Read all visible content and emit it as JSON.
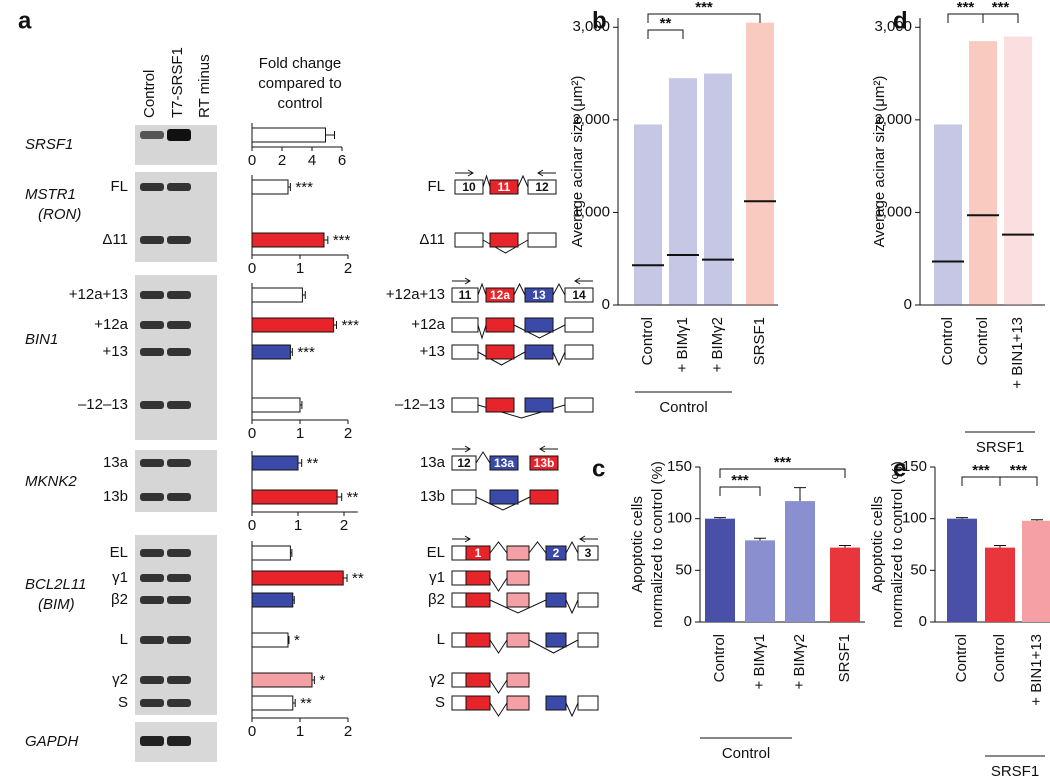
{
  "panel_labels": [
    "a",
    "b",
    "c",
    "d",
    "e"
  ],
  "gel": {
    "lanes": [
      "Control",
      "T7-SRSF1",
      "RT minus"
    ],
    "loading_control": "GAPDH"
  },
  "fold_change_header": [
    "Fold change",
    "compared to",
    "control"
  ],
  "chart_data": [
    {
      "type": "hbar",
      "title": "SRSF1",
      "categories": [
        null
      ],
      "values": [
        4.9
      ],
      "errors": [
        0.6
      ],
      "colors": [
        "#ffffff"
      ],
      "annotations": [
        null
      ],
      "xlim": [
        0,
        6
      ],
      "xticks": [
        0,
        2,
        4,
        6
      ]
    },
    {
      "type": "hbar",
      "title": "MSTR1",
      "subtitle": "(RON)",
      "categories": [
        "FL",
        "Δ11"
      ],
      "values": [
        0.75,
        1.5
      ],
      "errors": [
        0.05,
        0.08
      ],
      "colors": [
        "#ffffff",
        "#e8242b"
      ],
      "annotations": [
        "***",
        "***"
      ],
      "xlim": [
        0,
        2
      ],
      "xticks": [
        0,
        1,
        2
      ],
      "exon_labels": [
        "10",
        "11",
        "12"
      ]
    },
    {
      "type": "hbar",
      "title": "BIN1",
      "categories": [
        "+12a+13",
        "+12a",
        "+13",
        "–12–13"
      ],
      "values": [
        1.05,
        1.7,
        0.8,
        1.0
      ],
      "errors": [
        0.06,
        0.06,
        0.04,
        0.04
      ],
      "colors": [
        "#ffffff",
        "#e8242b",
        "#3b4aa8",
        "#ffffff"
      ],
      "annotations": [
        null,
        "***",
        "***",
        null
      ],
      "xlim": [
        0,
        2
      ],
      "xticks": [
        0,
        1,
        2
      ],
      "exon_labels": [
        "11",
        "12a",
        "13",
        "14"
      ]
    },
    {
      "type": "hbar",
      "title": "MKNK2",
      "categories": [
        "13a",
        "13b"
      ],
      "values": [
        1.0,
        1.85
      ],
      "errors": [
        0.08,
        0.1
      ],
      "colors": [
        "#3b4aa8",
        "#e8242b"
      ],
      "annotations": [
        "**",
        "**"
      ],
      "xlim": [
        0,
        2.3
      ],
      "xticks": [
        0,
        1,
        2
      ],
      "exon_labels": [
        "12",
        "13a",
        "13b"
      ]
    },
    {
      "type": "hbar",
      "title": "BCL2L11",
      "subtitle": "(BIM)",
      "categories": [
        "EL",
        "γ1",
        "β2",
        "L",
        "γ2",
        "S"
      ],
      "values": [
        0.8,
        1.9,
        0.85,
        0.75,
        1.25,
        0.85
      ],
      "errors": [
        0.03,
        0.08,
        0.03,
        0.02,
        0.05,
        0.05
      ],
      "colors": [
        "#ffffff",
        "#e8242b",
        "#3b4aa8",
        "#ffffff",
        "#f4a0a4",
        "#ffffff"
      ],
      "annotations": [
        null,
        "**",
        null,
        "*",
        "*",
        "**"
      ],
      "xlim": [
        0,
        2
      ],
      "xticks": [
        0,
        1,
        2
      ],
      "exon_labels": [
        "1",
        "2",
        "3"
      ]
    },
    {
      "type": "dot",
      "ylabel": [
        "Average acinar size (μm²)"
      ],
      "categories": [
        "Control",
        "+ BIMγ1",
        "+ BIMγ2",
        "SRSF1"
      ],
      "values": [
        430,
        540,
        490,
        1120
      ],
      "max": [
        1950,
        2450,
        2500,
        3050
      ],
      "colors": [
        "#5a5fb5",
        "#5a5fb5",
        "#5a5fb5",
        "#ee6a4a"
      ],
      "group_label": "Control",
      "significance": [
        "**",
        "***"
      ],
      "ylim": [
        0,
        3100
      ],
      "yticks": [
        0,
        {
          "value": 1000,
          "label": "1,000"
        },
        {
          "value": 2000,
          "label": "2,000"
        },
        {
          "value": 3000,
          "label": "3,000"
        }
      ]
    },
    {
      "type": "bar",
      "ylabel": [
        "Apoptotic cells",
        "normalized to control (%)"
      ],
      "categories": [
        "Control",
        "+ BIMγ1",
        "+ BIMγ2",
        "SRSF1"
      ],
      "values": [
        100,
        79,
        117,
        72
      ],
      "errors": [
        1,
        2,
        13,
        2
      ],
      "colors": [
        "#4a4fa8",
        "#8a8fd0",
        "#8a8fd0",
        "#e8363c"
      ],
      "group_label": "Control",
      "significance": [
        "***",
        "***"
      ],
      "ylim": [
        0,
        150
      ],
      "yticks": [
        0,
        50,
        100,
        150
      ]
    },
    {
      "type": "dot",
      "ylabel": [
        "Average acinar size (μm²)"
      ],
      "categories": [
        "Control",
        "Control",
        "+ BIN1+13"
      ],
      "values": [
        470,
        970,
        760
      ],
      "max": [
        1950,
        2850,
        2900
      ],
      "colors": [
        "#5a5fb5",
        "#ee6a4a",
        "#f4a0a4"
      ],
      "group_label": "SRSF1",
      "significance": [
        "***",
        "***"
      ],
      "ylim": [
        0,
        3100
      ],
      "yticks": [
        0,
        {
          "value": 1000,
          "label": "1,000"
        },
        {
          "value": 2000,
          "label": "2,000"
        },
        {
          "value": 3000,
          "label": "3,000"
        }
      ]
    },
    {
      "type": "bar",
      "ylabel": [
        "Apoptotic cells",
        "normalized to control (%)"
      ],
      "categories": [
        "Control",
        "Control",
        "+ BIN1+13"
      ],
      "values": [
        100,
        72,
        98
      ],
      "errors": [
        1,
        2,
        1
      ],
      "colors": [
        "#4a4fa8",
        "#e8363c",
        "#f4a0a4"
      ],
      "group_label": "SRSF1",
      "significance": [
        "***",
        "***"
      ],
      "ylim": [
        0,
        150
      ],
      "yticks": [
        0,
        50,
        100,
        150
      ]
    }
  ]
}
